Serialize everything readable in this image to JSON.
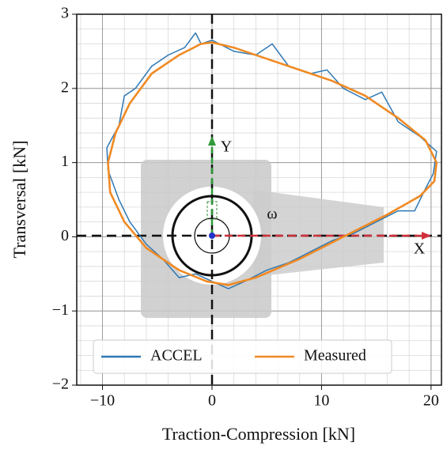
{
  "chart_data": {
    "type": "line",
    "xlabel": "Traction-Compression [kN]",
    "ylabel": "Transversal [kN]",
    "xlim": [
      -12.35,
      20.95
    ],
    "ylim": [
      -2,
      3
    ],
    "xticks": [
      {
        "value": -10,
        "label": "−10"
      },
      0,
      10,
      20
    ],
    "yticks": [
      {
        "value": -2,
        "label": "−2"
      },
      {
        "value": -1,
        "label": "−1"
      },
      0,
      1,
      2,
      3
    ],
    "grid": true,
    "minor_grid": true,
    "legend": "lower center",
    "annotations": [
      "X",
      "Y",
      "ω"
    ],
    "series": [
      {
        "name": "ACCEL",
        "color": "#2f78b4",
        "x": [
          -1.5,
          -1,
          0,
          2,
          4,
          5.5,
          7,
          9,
          10.5,
          12,
          14,
          15.5,
          17,
          19,
          20.5,
          20.2,
          19.5,
          18.5,
          17,
          15,
          13,
          11,
          9,
          7,
          5,
          3,
          1.5,
          0,
          -1.5,
          -3,
          -4.5,
          -6,
          -7.5,
          -8.5,
          -9.5,
          -9.6,
          -8.5,
          -8,
          -7,
          -5.5,
          -4,
          -2.5,
          -1.5
        ],
        "values": [
          2.75,
          2.6,
          2.65,
          2.5,
          2.45,
          2.6,
          2.3,
          2.2,
          2.25,
          2.0,
          1.85,
          1.95,
          1.55,
          1.35,
          1.15,
          0.85,
          0.65,
          0.35,
          0.35,
          0.2,
          0.05,
          -0.05,
          -0.2,
          -0.35,
          -0.45,
          -0.6,
          -0.7,
          -0.6,
          -0.5,
          -0.55,
          -0.3,
          -0.1,
          0.2,
          0.5,
          0.9,
          1.2,
          1.5,
          1.9,
          2.0,
          2.3,
          2.45,
          2.55,
          2.75
        ]
      },
      {
        "name": "Measured",
        "color": "#f08a24",
        "x": [
          0,
          2,
          5,
          8,
          11,
          14,
          17,
          19.5,
          20.5,
          20.3,
          19,
          16,
          12,
          8,
          4,
          1.5,
          -0.5,
          -3,
          -6,
          -8,
          -9.3,
          -9.5,
          -8.8,
          -7.5,
          -5.5,
          -3,
          -1,
          0
        ],
        "values": [
          2.62,
          2.55,
          2.4,
          2.25,
          2.1,
          1.9,
          1.6,
          1.3,
          1.0,
          0.75,
          0.55,
          0.3,
          0.0,
          -0.3,
          -0.55,
          -0.65,
          -0.6,
          -0.45,
          -0.15,
          0.2,
          0.6,
          1.0,
          1.4,
          1.8,
          2.2,
          2.45,
          2.6,
          2.62
        ]
      }
    ]
  }
}
